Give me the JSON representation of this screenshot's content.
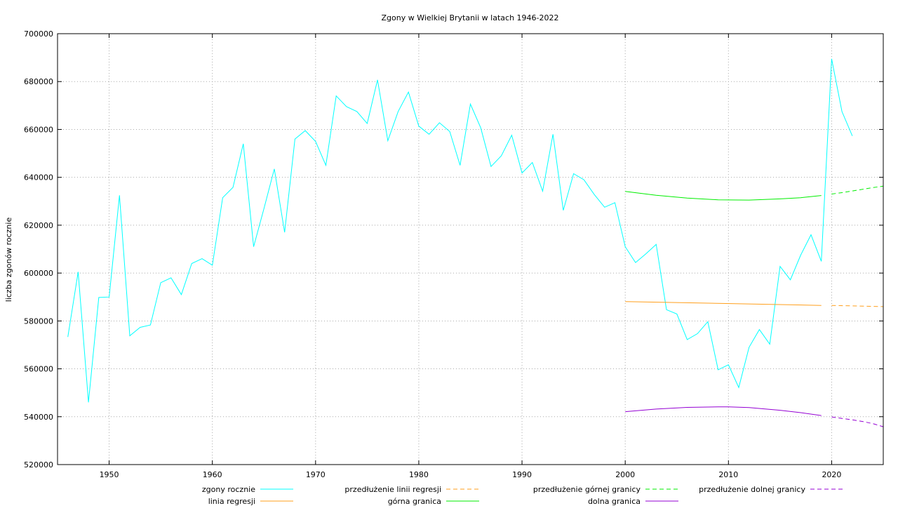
{
  "chart_data": {
    "type": "line",
    "title": "Zgony w Wielkiej Brytanii w latach 1946-2022",
    "xlabel": "",
    "ylabel": "liczba zgonów rocznie",
    "xlim": [
      1945,
      2025
    ],
    "ylim": [
      520000,
      700000
    ],
    "x_ticks": [
      1950,
      1960,
      1970,
      1980,
      1990,
      2000,
      2010,
      2020
    ],
    "y_ticks": [
      520000,
      540000,
      560000,
      580000,
      600000,
      620000,
      640000,
      660000,
      680000,
      700000
    ],
    "grid": true,
    "legend_position": "bottom",
    "series": [
      {
        "name": "zgony rocznie",
        "color": "#00ffff",
        "dash": "solid",
        "x": [
          1946,
          1947,
          1948,
          1949,
          1950,
          1951,
          1952,
          1953,
          1954,
          1955,
          1956,
          1957,
          1958,
          1959,
          1960,
          1961,
          1962,
          1963,
          1964,
          1965,
          1966,
          1967,
          1968,
          1969,
          1970,
          1971,
          1972,
          1973,
          1974,
          1975,
          1976,
          1977,
          1978,
          1979,
          1980,
          1981,
          1982,
          1983,
          1984,
          1985,
          1986,
          1987,
          1988,
          1989,
          1990,
          1991,
          1992,
          1993,
          1994,
          1995,
          1996,
          1997,
          1998,
          1999,
          2000,
          2001,
          2002,
          2003,
          2004,
          2005,
          2006,
          2007,
          2008,
          2009,
          2010,
          2011,
          2012,
          2013,
          2014,
          2015,
          2016,
          2017,
          2018,
          2019,
          2020,
          2021,
          2022
        ],
        "y": [
          573300,
          600500,
          546000,
          589800,
          590000,
          632500,
          573800,
          577300,
          578300,
          596000,
          598000,
          591000,
          604000,
          606000,
          603300,
          631500,
          635800,
          654000,
          611000,
          627000,
          643500,
          617000,
          656000,
          659500,
          655000,
          645000,
          674000,
          669500,
          667500,
          662500,
          680700,
          655300,
          667500,
          675600,
          661400,
          658000,
          662800,
          659100,
          645000,
          670600,
          660700,
          644500,
          649000,
          657600,
          641800,
          646200,
          634200,
          658000,
          626200,
          641500,
          639000,
          632800,
          627500,
          629400,
          611000,
          604400,
          608000,
          612000,
          584700,
          582900,
          572200,
          574700,
          579700,
          559600,
          561700,
          552200,
          569000,
          576400,
          570300,
          602800,
          597200,
          607500,
          616000,
          604900,
          689500,
          667500,
          657300
        ]
      },
      {
        "name": "przedłużenie linii regresji",
        "color": "#ff9f1c",
        "dash": "dashed",
        "x": [
          2020,
          2025
        ],
        "y": [
          586500,
          586000
        ]
      },
      {
        "name": "przedłużenie górnej granicy",
        "color": "#00ee00",
        "dash": "dashed",
        "x": [
          2020,
          2021,
          2022,
          2023,
          2024,
          2025
        ],
        "y": [
          633000,
          633600,
          634300,
          635000,
          635700,
          636300
        ]
      },
      {
        "name": "przedłużenie dolnej granicy",
        "color": "#9400d3",
        "dash": "dashed",
        "x": [
          2020,
          2021,
          2022,
          2023,
          2024,
          2025
        ],
        "y": [
          539900,
          539300,
          538700,
          538000,
          537100,
          535800
        ]
      },
      {
        "name": "linia regresji",
        "color": "#ff9f1c",
        "dash": "solid",
        "x": [
          2000,
          2019
        ],
        "y": [
          588100,
          586500
        ]
      },
      {
        "name": "górna granica",
        "color": "#00ee00",
        "dash": "solid",
        "x": [
          2000,
          2003,
          2006,
          2009,
          2012,
          2015,
          2017,
          2019
        ],
        "y": [
          634100,
          632500,
          631300,
          630600,
          630500,
          631000,
          631500,
          632400
        ]
      },
      {
        "name": "dolna granica",
        "color": "#9400d3",
        "dash": "solid",
        "x": [
          2000,
          2003,
          2006,
          2009,
          2010,
          2012,
          2015,
          2017,
          2019
        ],
        "y": [
          542100,
          543200,
          543900,
          544100,
          544100,
          543800,
          542700,
          541700,
          540500
        ]
      }
    ],
    "legend_order": [
      "zgony rocznie",
      "przedłużenie linii regresji",
      "przedłużenie górnej granicy",
      "przedłużenie dolnej granicy",
      "linia regresji",
      "górna granica",
      "dolna granica"
    ]
  }
}
